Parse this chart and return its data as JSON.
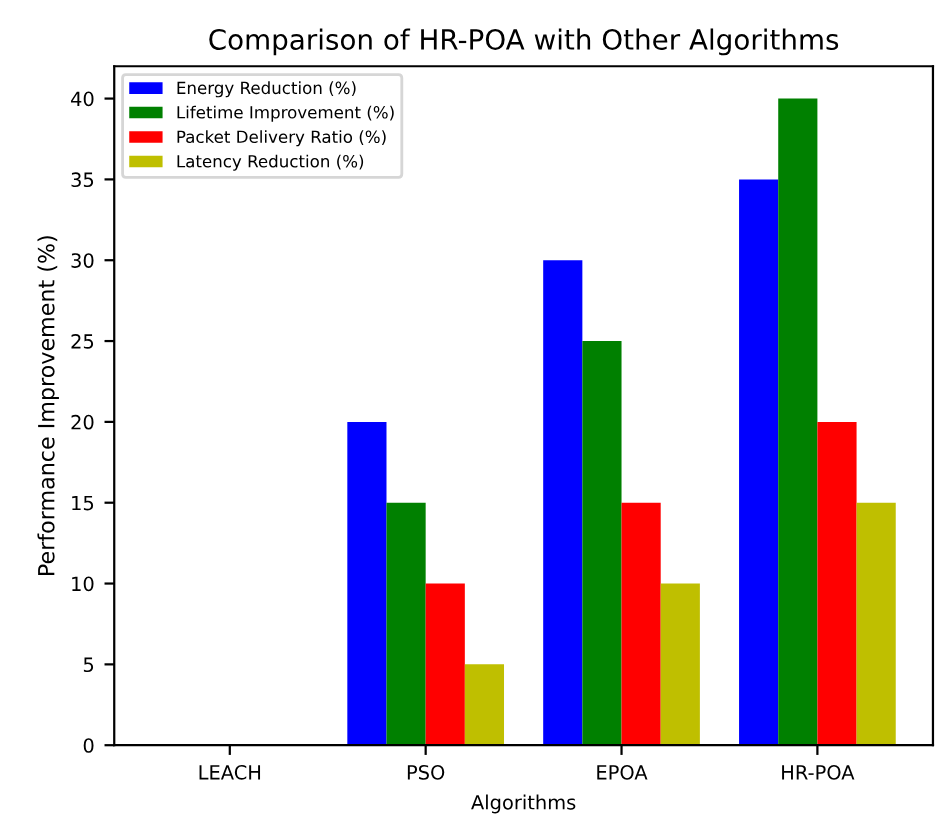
{
  "chart_data": {
    "type": "bar",
    "title": "Comparison of HR-POA with Other Algorithms",
    "xlabel": "Algorithms",
    "ylabel": "Performance Improvement (%)",
    "categories": [
      "LEACH",
      "PSO",
      "EPOA",
      "HR-POA"
    ],
    "series": [
      {
        "name": "Energy Reduction (%)",
        "color": "#0000ff",
        "values": [
          0,
          20,
          30,
          35
        ]
      },
      {
        "name": "Lifetime Improvement (%)",
        "color": "#008000",
        "values": [
          0,
          15,
          25,
          40
        ]
      },
      {
        "name": "Packet Delivery Ratio (%)",
        "color": "#ff0000",
        "values": [
          0,
          10,
          15,
          20
        ]
      },
      {
        "name": "Latency Reduction (%)",
        "color": "#bfbf00",
        "values": [
          0,
          5,
          10,
          15
        ]
      }
    ],
    "ylim": [
      0,
      42
    ],
    "yticks": [
      0,
      5,
      10,
      15,
      20,
      25,
      30,
      35,
      40
    ],
    "grid": false,
    "legend": "top left"
  }
}
